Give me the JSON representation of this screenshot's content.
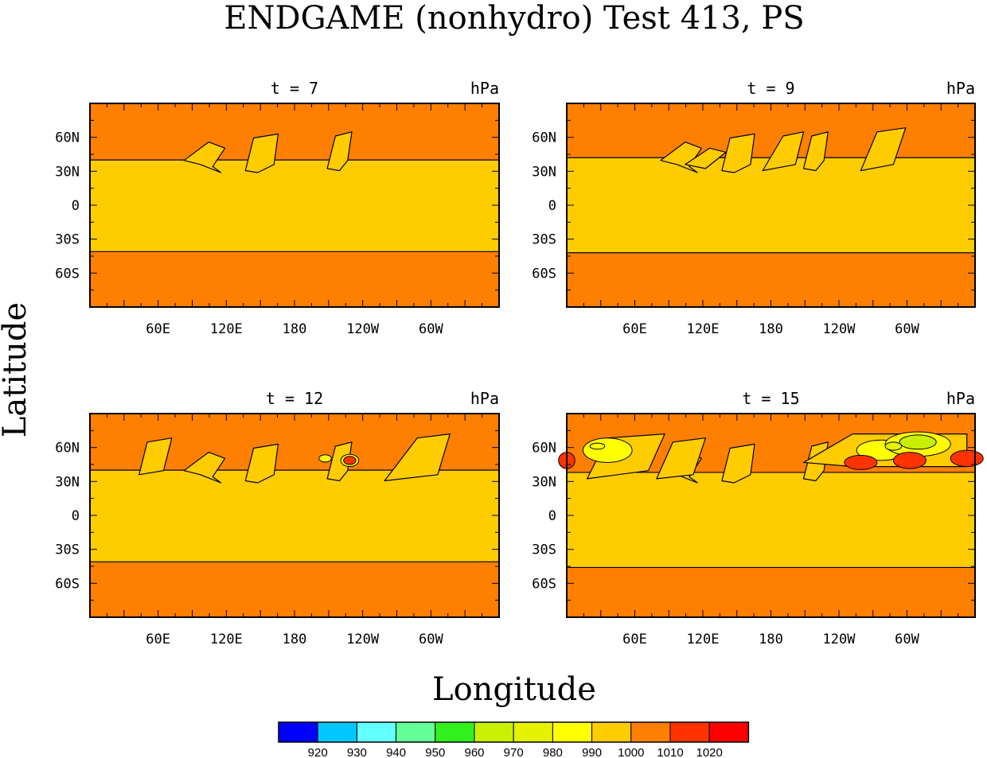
{
  "title": "ENDGAME (nonhydro) Test 413, PS",
  "xlabel": "Longitude",
  "ylabel": "Latitude",
  "colors": {
    "band_990_1000": "#ffcc00",
    "band_1000_1010": "#ff7f00",
    "band_1010_1020": "#ff3300",
    "band_980_990": "#ffff00",
    "band_970_980": "#e6f200",
    "band_960_970": "#c8f000"
  },
  "chart_data": {
    "type": "contour",
    "variable": "PS",
    "units": "hPa",
    "x_ticks": [
      "60E",
      "120E",
      "180",
      "120W",
      "60W"
    ],
    "x_tick_values": [
      60,
      120,
      180,
      240,
      300
    ],
    "y_ticks": [
      "60N",
      "30N",
      "0",
      "30S",
      "60S"
    ],
    "y_tick_values": [
      60,
      30,
      0,
      -30,
      -60
    ],
    "xlim": [
      0,
      360
    ],
    "ylim": [
      -90,
      90
    ],
    "panels": [
      {
        "label": "t = 7",
        "units": "hPa",
        "time": 7,
        "north_front_lat": 40,
        "south_front_lat": -41
      },
      {
        "label": "t = 9",
        "units": "hPa",
        "time": 9,
        "north_front_lat": 42,
        "south_front_lat": -42
      },
      {
        "label": "t = 12",
        "units": "hPa",
        "time": 12,
        "north_front_lat": 40,
        "south_front_lat": -41
      },
      {
        "label": "t = 15",
        "units": "hPa",
        "time": 15,
        "north_front_lat": 38,
        "south_front_lat": -46
      }
    ],
    "colorbar": {
      "labels": [
        "920",
        "930",
        "940",
        "950",
        "960",
        "970",
        "980",
        "990",
        "1000",
        "1010",
        "1020"
      ],
      "colors": [
        "#0000ff",
        "#00c8ff",
        "#64ffff",
        "#64ff96",
        "#32f01e",
        "#c8f000",
        "#e6f200",
        "#ffff00",
        "#ffcc00",
        "#ff7f00",
        "#ff3300",
        "#ff0000"
      ]
    }
  }
}
